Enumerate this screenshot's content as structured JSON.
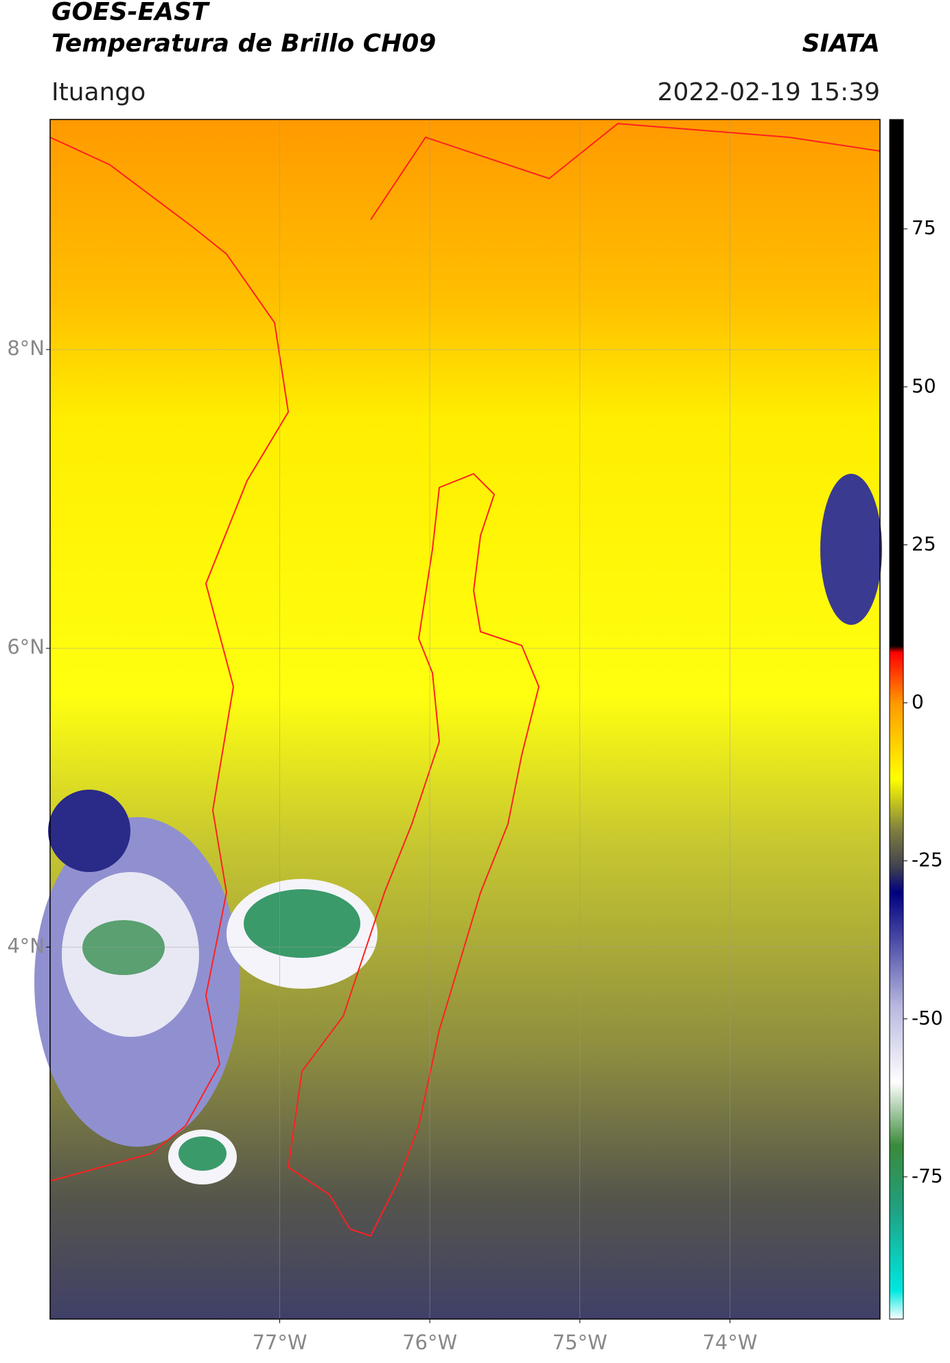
{
  "header": {
    "title": "GOES-EAST",
    "subtitle": "Temperatura de Brillo CH09",
    "source": "SIATA",
    "location": "Ituango",
    "timestamp": "2022-02-19 15:39"
  },
  "chart_data": {
    "type": "map",
    "xlim": [
      -78.53,
      -73.0
    ],
    "ylim": [
      1.51,
      9.54
    ],
    "xticks": [
      {
        "value": -77,
        "label": "77°W"
      },
      {
        "value": -76,
        "label": "76°W"
      },
      {
        "value": -75,
        "label": "75°W"
      },
      {
        "value": -74,
        "label": "74°W"
      }
    ],
    "yticks": [
      {
        "value": 8,
        "label": "8°N"
      },
      {
        "value": 6,
        "label": "6°N"
      },
      {
        "value": 4,
        "label": "4°N"
      }
    ],
    "grid": true,
    "colorbar": {
      "lim": [
        -97.5,
        92.3
      ],
      "ticks": [
        75,
        50,
        25,
        0,
        -25,
        -50,
        -75
      ],
      "colormap": [
        {
          "value": -97.5,
          "color": "#ffffff"
        },
        {
          "value": -93,
          "color": "#00e8e0"
        },
        {
          "value": -80,
          "color": "#20a080"
        },
        {
          "value": -70,
          "color": "#3a8a3a"
        },
        {
          "value": -60,
          "color": "#ffffff"
        },
        {
          "value": -48,
          "color": "#b8b8e0"
        },
        {
          "value": -38,
          "color": "#5050a8"
        },
        {
          "value": -30,
          "color": "#000080"
        },
        {
          "value": -26,
          "color": "#404050"
        },
        {
          "value": -20,
          "color": "#808040"
        },
        {
          "value": -12,
          "color": "#ffff00"
        },
        {
          "value": 0,
          "color": "#ff9900"
        },
        {
          "value": 8,
          "color": "#ff0000"
        },
        {
          "value": 9,
          "color": "#000000"
        },
        {
          "value": 92.3,
          "color": "#000000"
        }
      ]
    }
  }
}
